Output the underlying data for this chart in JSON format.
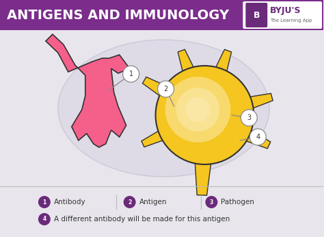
{
  "title": "ANTIGENS AND IMMUNOLOGY",
  "title_bg": "#7b2d8b",
  "title_color": "#ffffff",
  "main_bg": "#e8e6ec",
  "ellipse_fc": "#dddae6",
  "ellipse_ec": "#c8c5d5",
  "antibody_fill": "#f5608a",
  "antibody_edge": "#333333",
  "antigen_fill": "#f5c520",
  "antigen_edge": "#333333",
  "antigen_highlight_inner": "#f8e070",
  "legend_circle_color": "#6b2a7a",
  "ann_circle_fc": "#ffffff",
  "ann_circle_ec": "#888888",
  "ann_line_color": "#888888",
  "sep_color": "#bbbbbb",
  "legend_text_color": "#333333",
  "byju_box_fc": "#ffffff",
  "byju_purple": "#6b2a7a",
  "legend_items": [
    {
      "num": "1",
      "label": "Antibody"
    },
    {
      "num": "2",
      "label": "Antigen"
    },
    {
      "num": "3",
      "label": "Pathogen"
    }
  ],
  "legend_item4_label": "A different antibody will be made for this antigen"
}
